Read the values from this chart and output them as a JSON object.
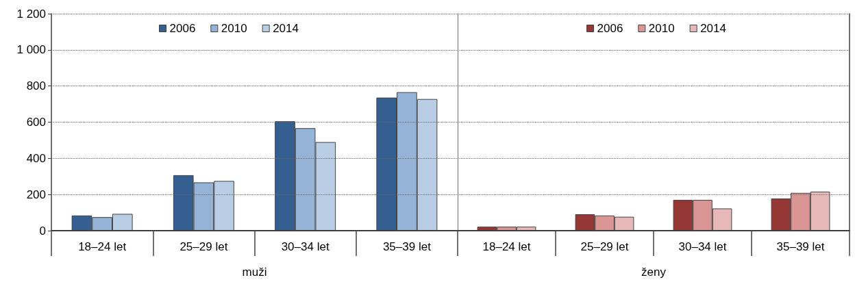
{
  "chart_data": [
    {
      "type": "bar",
      "xlabel": "muži",
      "categories": [
        "18–24 let",
        "25–29 let",
        "30–34 let",
        "35–39 let"
      ],
      "series": [
        {
          "name": "2006",
          "color": "#355f91",
          "values": [
            84,
            307,
            605,
            736
          ]
        },
        {
          "name": "2010",
          "color": "#95b3d7",
          "values": [
            75,
            267,
            567,
            766
          ]
        },
        {
          "name": "2014",
          "color": "#b9cde5",
          "values": [
            93,
            275,
            490,
            728
          ]
        }
      ],
      "ylim": [
        0,
        1200
      ],
      "yticks": [
        0,
        200,
        400,
        600,
        800,
        {
          "value": 1000,
          "label": "1 000"
        },
        {
          "value": 1200,
          "label": "1 200"
        }
      ],
      "grid": "y",
      "legend": "top"
    },
    {
      "type": "bar",
      "xlabel": "ženy",
      "categories": [
        "18–24 let",
        "25–29 let",
        "30–34 let",
        "35–39 let"
      ],
      "series": [
        {
          "name": "2006",
          "color": "#953735",
          "values": [
            22,
            91,
            170,
            178
          ]
        },
        {
          "name": "2010",
          "color": "#d99694",
          "values": [
            22,
            84,
            170,
            209
          ]
        },
        {
          "name": "2014",
          "color": "#e6b9b8",
          "values": [
            22,
            77,
            123,
            216
          ]
        }
      ],
      "ylim": [
        0,
        1200
      ],
      "yticks": [
        0,
        200,
        400,
        600,
        800,
        1000,
        1200
      ],
      "grid": "y",
      "legend": "top",
      "tick_labels": "x"
    }
  ]
}
